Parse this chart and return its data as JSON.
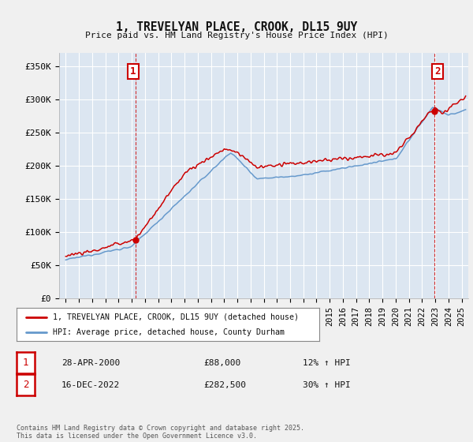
{
  "title": "1, TREVELYAN PLACE, CROOK, DL15 9UY",
  "subtitle": "Price paid vs. HM Land Registry's House Price Index (HPI)",
  "ylabel_ticks": [
    "£0",
    "£50K",
    "£100K",
    "£150K",
    "£200K",
    "£250K",
    "£300K",
    "£350K"
  ],
  "ytick_values": [
    0,
    50000,
    100000,
    150000,
    200000,
    250000,
    300000,
    350000
  ],
  "ylim": [
    0,
    370000
  ],
  "xlim_start": 1994.5,
  "xlim_end": 2025.5,
  "red_line_color": "#cc0000",
  "blue_line_color": "#6699cc",
  "dashed_line_color": "#cc0000",
  "plot_bg_color": "#dce6f1",
  "marker1_x": 2000.32,
  "marker1_y": 88000,
  "marker2_x": 2022.96,
  "marker2_y": 282500,
  "legend_line1": "1, TREVELYAN PLACE, CROOK, DL15 9UY (detached house)",
  "legend_line2": "HPI: Average price, detached house, County Durham",
  "table_row1": [
    "1",
    "28-APR-2000",
    "£88,000",
    "12% ↑ HPI"
  ],
  "table_row2": [
    "2",
    "16-DEC-2022",
    "£282,500",
    "30% ↑ HPI"
  ],
  "footer": "Contains HM Land Registry data © Crown copyright and database right 2025.\nThis data is licensed under the Open Government Licence v3.0.",
  "background_color": "#f0f0f0",
  "grid_color": "#ffffff"
}
